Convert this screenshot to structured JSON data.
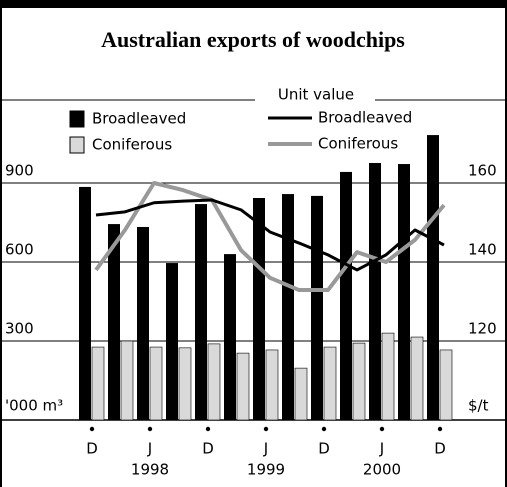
{
  "chart_data": {
    "type": "bar",
    "title": "Australian exports of woodchips",
    "y_label": "'000 m³",
    "y2_label": "$/t",
    "line_legend_title": "Unit value",
    "categories": [
      "D",
      null,
      "J",
      null,
      "D",
      null,
      "J",
      null,
      "D",
      null,
      "J",
      null,
      "D"
    ],
    "year_labels": [
      "1998",
      "1999",
      "2000"
    ],
    "ylim": [
      0,
      1200
    ],
    "yticks": [
      300,
      600,
      900
    ],
    "y2lim": [
      100,
      180
    ],
    "y2ticks": [
      120,
      140,
      160
    ],
    "grid": true,
    "series": [
      {
        "name": "Broadleaved",
        "type": "bar",
        "color": "#000000",
        "values": [
          885,
          744,
          733,
          596,
          820,
          630,
          843,
          858,
          851,
          942,
          976,
          972,
          1082
        ]
      },
      {
        "name": "Coniferous",
        "type": "bar",
        "color": "#d9d9d9",
        "values": [
          277,
          300,
          277,
          274,
          289,
          254,
          266,
          197,
          277,
          292,
          330,
          315,
          266
        ]
      },
      {
        "name": "Broadleaved",
        "type": "line",
        "axis": "y2",
        "color": "#000000",
        "values": [
          151.9,
          152.7,
          155,
          155.4,
          155.7,
          153.2,
          147.6,
          144.8,
          141.8,
          138,
          141.8,
          148.1,
          144.3
        ]
      },
      {
        "name": "Coniferous",
        "type": "line",
        "axis": "y2",
        "color": "#999999",
        "values": [
          138,
          148.1,
          160,
          158.2,
          155.7,
          143,
          136,
          132.9,
          132.9,
          142.5,
          140,
          145.6,
          154.4
        ]
      }
    ]
  }
}
